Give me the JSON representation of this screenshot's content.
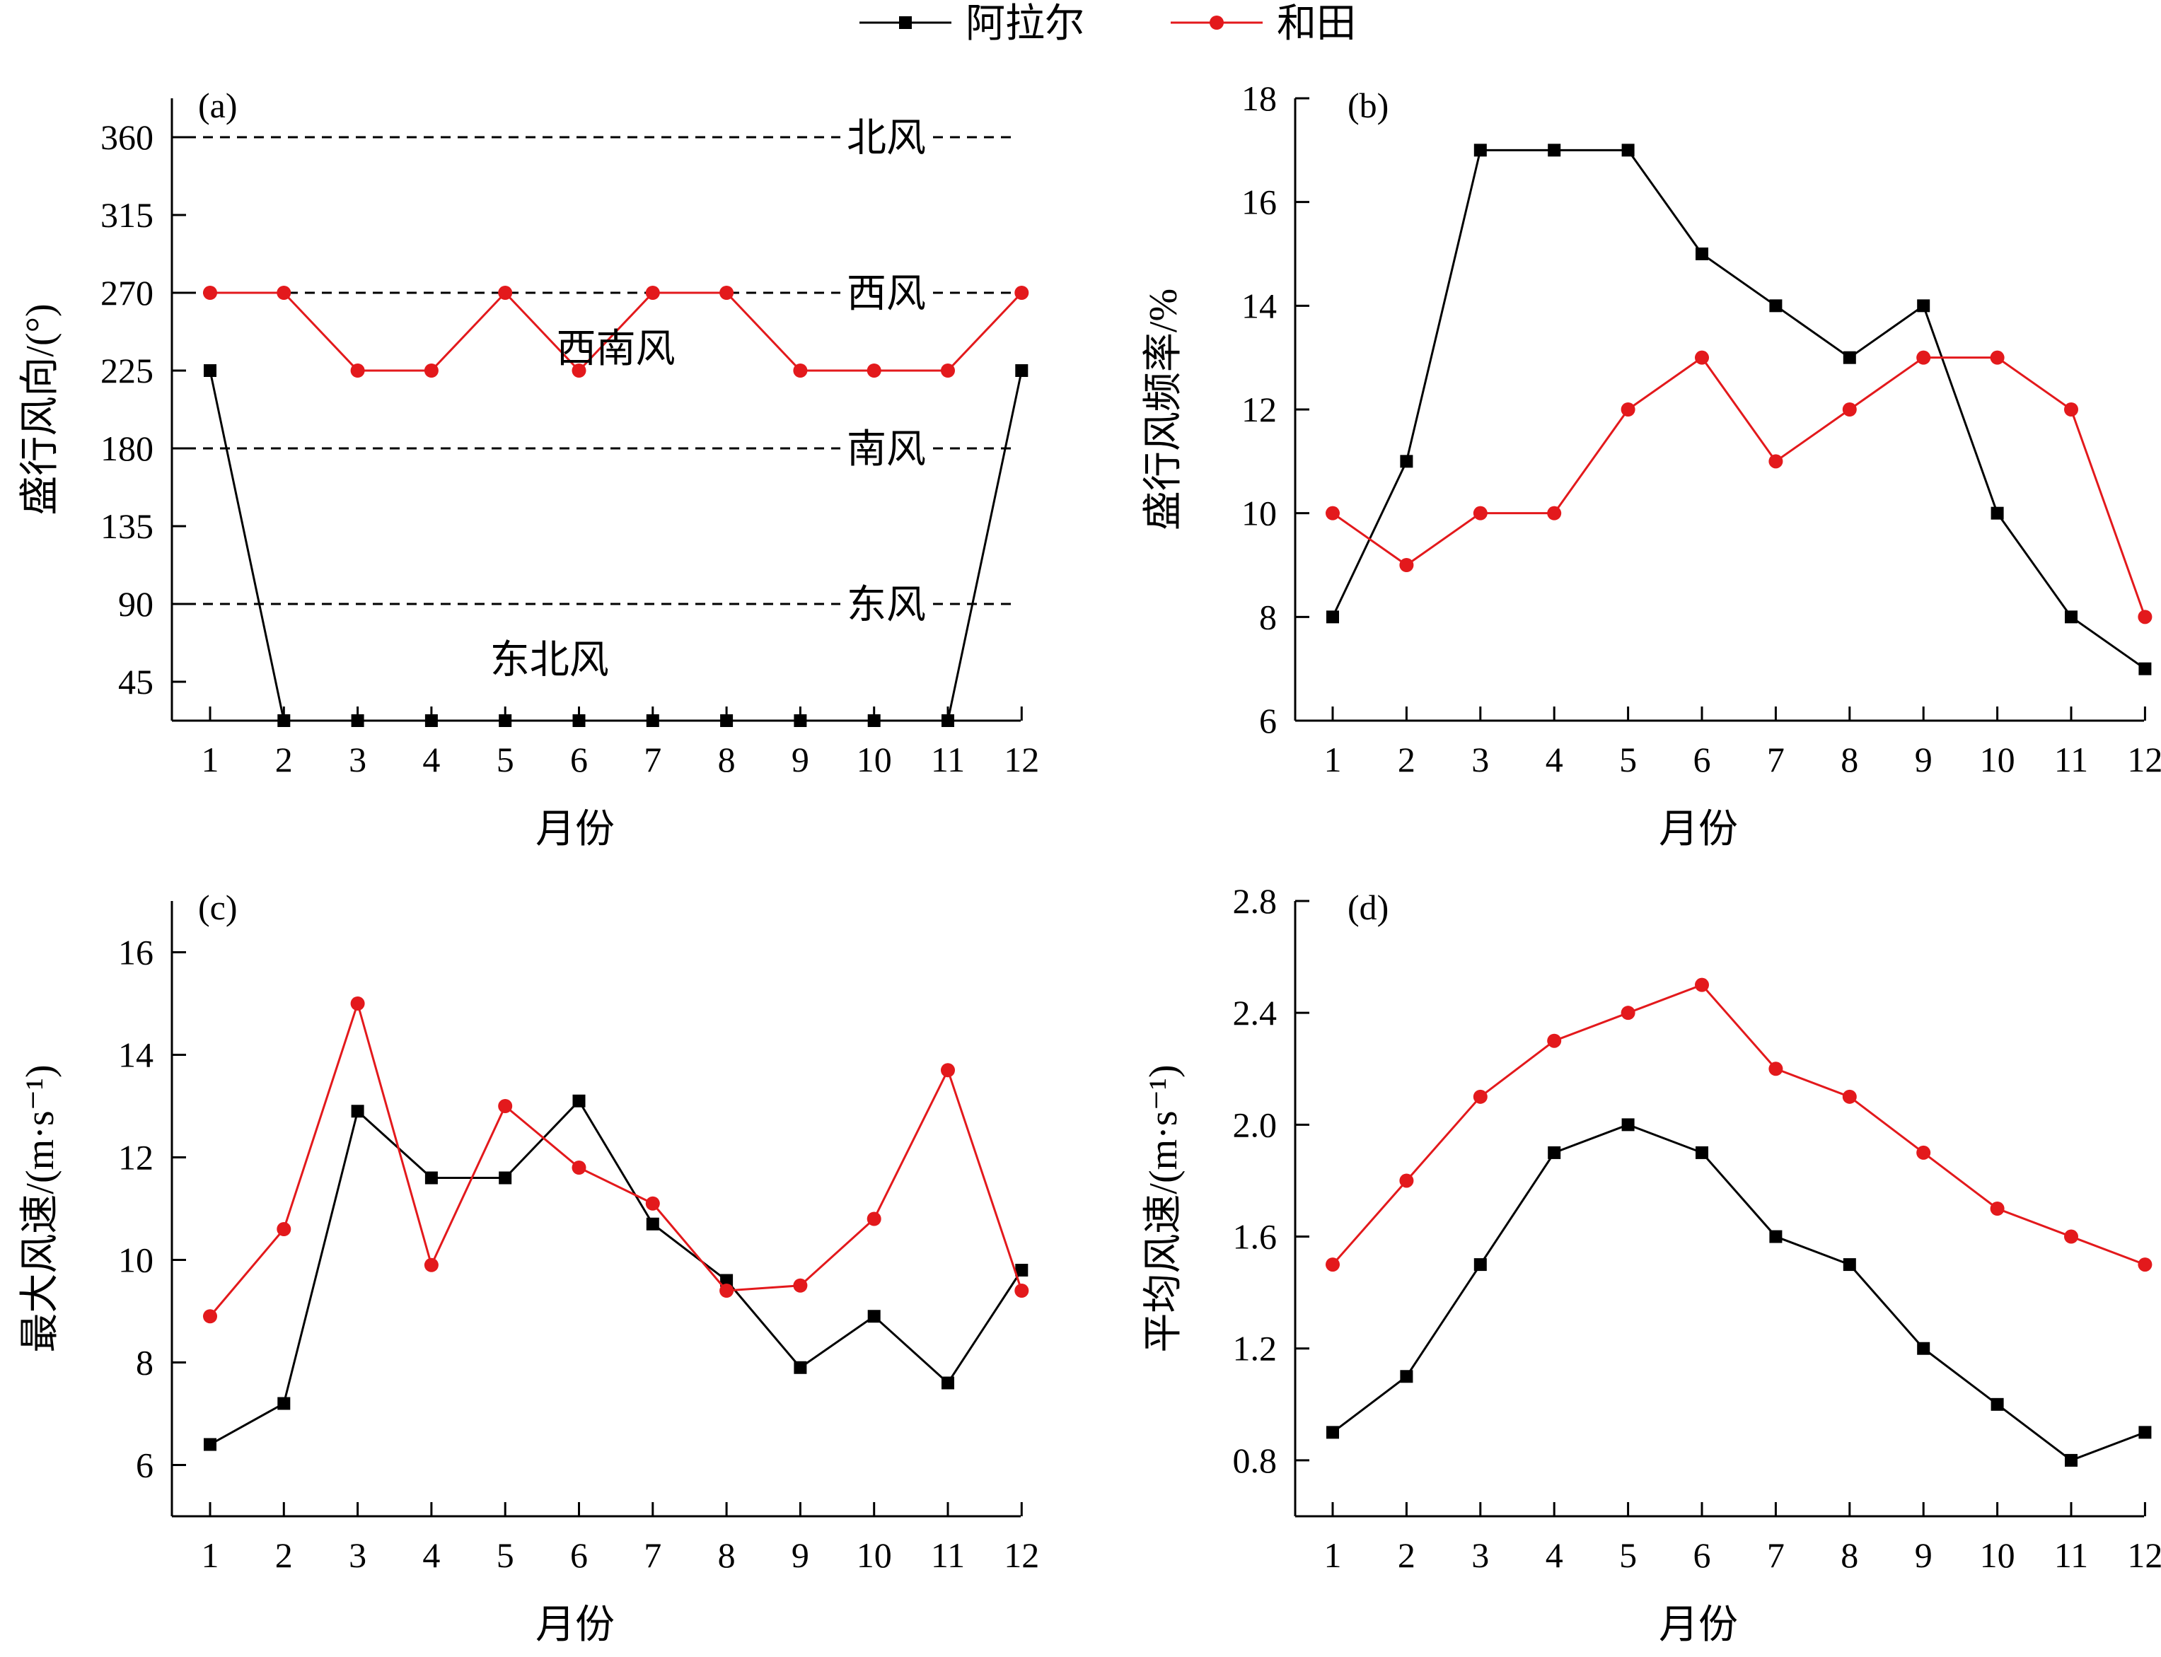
{
  "legend": {
    "items": [
      {
        "name": "阿拉尔",
        "color": "#000000",
        "marker": "square"
      },
      {
        "name": "和田",
        "color": "#e3191c",
        "marker": "circle"
      }
    ]
  },
  "chart_data": [
    {
      "panel": "(a)",
      "type": "line",
      "xlabel": "月份",
      "ylabel": "盛行风向/(°)",
      "x": [
        1,
        2,
        3,
        4,
        5,
        6,
        7,
        8,
        9,
        10,
        11,
        12
      ],
      "xticks": [
        "1",
        "2",
        "3",
        "4",
        "5",
        "6",
        "7",
        "8",
        "9",
        "10",
        "11",
        "12"
      ],
      "ylim": [
        22.5,
        382.5
      ],
      "yticks": [
        45,
        90,
        135,
        180,
        225,
        270,
        315,
        360
      ],
      "series": [
        {
          "name": "阿拉尔",
          "values": [
            225,
            22.5,
            22.5,
            22.5,
            22.5,
            22.5,
            22.5,
            22.5,
            22.5,
            22.5,
            22.5,
            225
          ]
        },
        {
          "name": "和田",
          "values": [
            270,
            270,
            225,
            225,
            270,
            225,
            270,
            270,
            225,
            225,
            225,
            270
          ]
        }
      ],
      "reference_lines": [
        {
          "y": 360,
          "label": "北风"
        },
        {
          "y": 270,
          "label": "西风"
        },
        {
          "y": 180,
          "label": "南风"
        },
        {
          "y": 90,
          "label": "东风"
        }
      ],
      "annotations": [
        {
          "text": "西南风",
          "x": 6.5,
          "y": 225
        },
        {
          "text": "东北风",
          "x": 5.6,
          "y": 45
        }
      ]
    },
    {
      "panel": "(b)",
      "type": "line",
      "xlabel": "月份",
      "ylabel": "盛行风频率/%",
      "x": [
        1,
        2,
        3,
        4,
        5,
        6,
        7,
        8,
        9,
        10,
        11,
        12
      ],
      "xticks": [
        "1",
        "2",
        "3",
        "4",
        "5",
        "6",
        "7",
        "8",
        "9",
        "10",
        "11",
        "12"
      ],
      "ylim": [
        6,
        18
      ],
      "yticks": [
        6,
        8,
        10,
        12,
        14,
        16,
        18
      ],
      "series": [
        {
          "name": "阿拉尔",
          "values": [
            8,
            11,
            17,
            17,
            17,
            15,
            14,
            13,
            14,
            10,
            8,
            7
          ]
        },
        {
          "name": "和田",
          "values": [
            10,
            9,
            10,
            10,
            12,
            13,
            11,
            12,
            13,
            13,
            12,
            8
          ]
        }
      ]
    },
    {
      "panel": "(c)",
      "type": "line",
      "xlabel": "月份",
      "ylabel": "最大风速/(m·s⁻¹)",
      "x": [
        1,
        2,
        3,
        4,
        5,
        6,
        7,
        8,
        9,
        10,
        11,
        12
      ],
      "xticks": [
        "1",
        "2",
        "3",
        "4",
        "5",
        "6",
        "7",
        "8",
        "9",
        "10",
        "11",
        "12"
      ],
      "ylim": [
        5,
        17
      ],
      "yticks": [
        6,
        8,
        10,
        12,
        14,
        16
      ],
      "series": [
        {
          "name": "阿拉尔",
          "values": [
            6.4,
            7.2,
            12.9,
            11.6,
            11.6,
            13.1,
            10.7,
            9.6,
            7.9,
            8.9,
            7.6,
            9.8
          ]
        },
        {
          "name": "和田",
          "values": [
            8.9,
            10.6,
            15.0,
            9.9,
            13.0,
            11.8,
            11.1,
            9.4,
            9.5,
            10.8,
            13.7,
            9.4
          ]
        }
      ]
    },
    {
      "panel": "(d)",
      "type": "line",
      "xlabel": "月份",
      "ylabel": "平均风速/(m·s⁻¹)",
      "x": [
        1,
        2,
        3,
        4,
        5,
        6,
        7,
        8,
        9,
        10,
        11,
        12
      ],
      "xticks": [
        "1",
        "2",
        "3",
        "4",
        "5",
        "6",
        "7",
        "8",
        "9",
        "10",
        "11",
        "12"
      ],
      "ylim": [
        0.6,
        2.8
      ],
      "yticks": [
        0.8,
        1.2,
        1.6,
        2.0,
        2.4,
        2.8
      ],
      "ytick_labels": [
        "0.8",
        "1.2",
        "1.6",
        "2.0",
        "2.4",
        "2.8"
      ],
      "series": [
        {
          "name": "阿拉尔",
          "values": [
            0.9,
            1.1,
            1.5,
            1.9,
            2.0,
            1.9,
            1.6,
            1.5,
            1.2,
            1.0,
            0.8,
            0.9
          ]
        },
        {
          "name": "和田",
          "values": [
            1.5,
            1.8,
            2.1,
            2.3,
            2.4,
            2.5,
            2.2,
            2.1,
            1.9,
            1.7,
            1.6,
            1.5
          ]
        }
      ]
    }
  ]
}
